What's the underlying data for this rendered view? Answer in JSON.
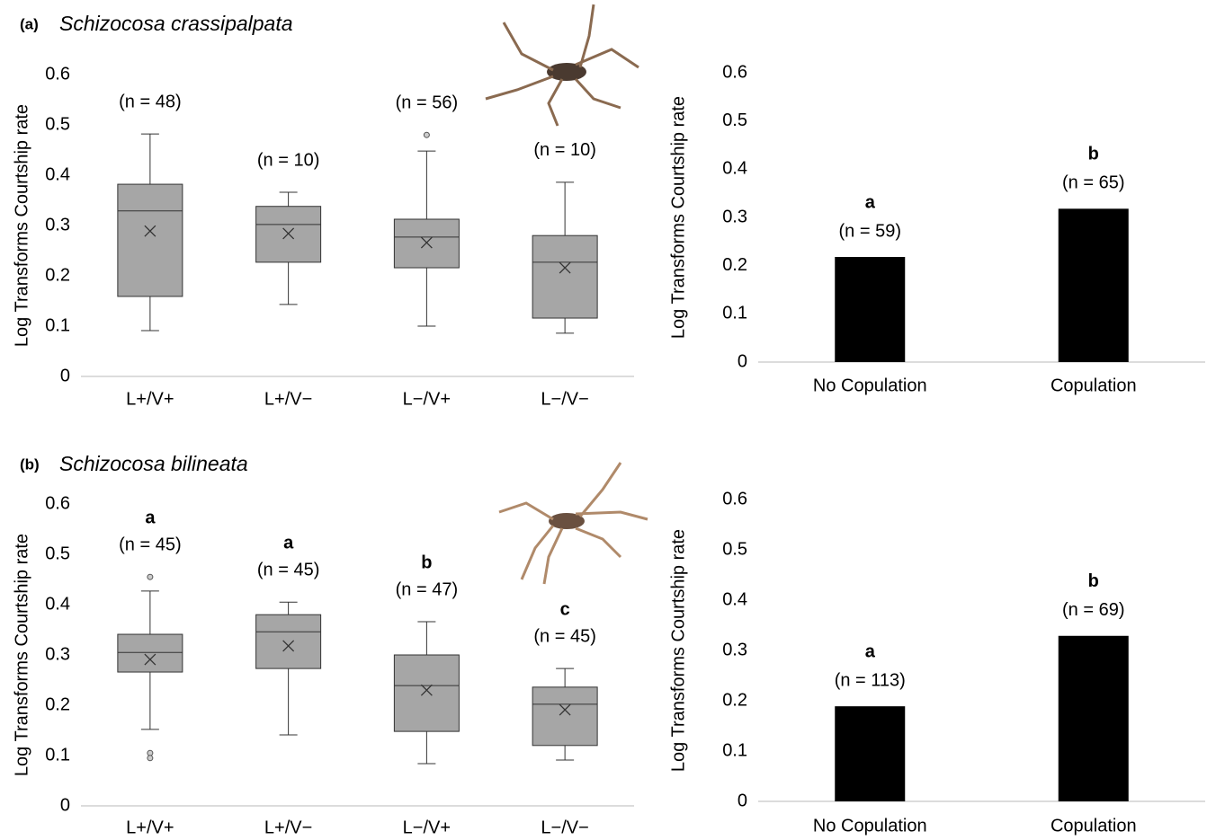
{
  "chart_data": [
    {
      "type": "box",
      "panel": "(a)",
      "title": "Schizocosa crassipalpata",
      "y_label": "Log Transforms Courtship rate",
      "categories": [
        "L+/V+",
        "L+/V−",
        "L−/V+",
        "L−/V−"
      ],
      "whisker_low": [
        0.091,
        0.143,
        0.1,
        0.086
      ],
      "q1": [
        0.159,
        0.227,
        0.216,
        0.116
      ],
      "median": [
        0.329,
        0.302,
        0.277,
        0.227
      ],
      "q3": [
        0.382,
        0.338,
        0.3125,
        0.28
      ],
      "whisker_high": [
        0.482,
        0.366,
        0.448,
        0.386
      ],
      "mean": [
        0.289,
        0.284,
        0.266,
        0.216
      ],
      "outliers": [
        [],
        [],
        [
          0.48
        ],
        []
      ],
      "n_labels": [
        "(n = 48)",
        "(n = 10)",
        "(n = 56)",
        "(n = 10)"
      ],
      "color": "#a6a6a6",
      "ylim": [
        0,
        0.6
      ],
      "yticks": [
        0,
        0.1,
        0.2,
        0.3,
        0.4,
        0.5,
        0.6
      ]
    },
    {
      "type": "bar",
      "y_label": "Log Transforms Courtship rate",
      "categories": [
        "No Copulation",
        "Copulation"
      ],
      "values": [
        0.218,
        0.318
      ],
      "letters": [
        "a",
        "b"
      ],
      "n_labels": [
        "(n = 59)",
        "(n = 65)"
      ],
      "color": "#000000",
      "ylim": [
        0,
        0.6
      ],
      "yticks": [
        0,
        0.1,
        0.2,
        0.3,
        0.4,
        0.5,
        0.6
      ]
    },
    {
      "type": "box",
      "panel": "(b)",
      "title": "Schizocosa bilineata",
      "y_label": "Log Transforms Courtship rate",
      "categories": [
        "L+/V+",
        "L+/V−",
        "L−/V+",
        "L−/V−"
      ],
      "whisker_low": [
        0.152,
        0.141,
        0.084,
        0.091
      ],
      "q1": [
        0.266,
        0.273,
        0.148,
        0.12
      ],
      "median": [
        0.305,
        0.346,
        0.239,
        0.202
      ],
      "q3": [
        0.341,
        0.38,
        0.3,
        0.236
      ],
      "whisker_high": [
        0.427,
        0.405,
        0.366,
        0.273
      ],
      "mean": [
        0.291,
        0.318,
        0.23,
        0.191
      ],
      "outliers": [
        [
          0.455,
          0.105,
          0.095
        ],
        [],
        [],
        []
      ],
      "letters": [
        "a",
        "a",
        "b",
        "c"
      ],
      "n_labels": [
        "(n = 45)",
        "(n = 45)",
        "(n = 47)",
        "(n = 45)"
      ],
      "color": "#a6a6a6",
      "ylim": [
        0,
        0.6
      ],
      "yticks": [
        0,
        0.1,
        0.2,
        0.3,
        0.4,
        0.5,
        0.6
      ]
    },
    {
      "type": "bar",
      "y_label": "Log Transforms Courtship rate",
      "categories": [
        "No Copulation",
        "Copulation"
      ],
      "values": [
        0.189,
        0.329
      ],
      "letters": [
        "a",
        "b"
      ],
      "n_labels": [
        "(n = 113)",
        "(n = 69)"
      ],
      "color": "#000000",
      "ylim": [
        0,
        0.6
      ],
      "yticks": [
        0,
        0.1,
        0.2,
        0.3,
        0.4,
        0.5,
        0.6
      ]
    }
  ]
}
